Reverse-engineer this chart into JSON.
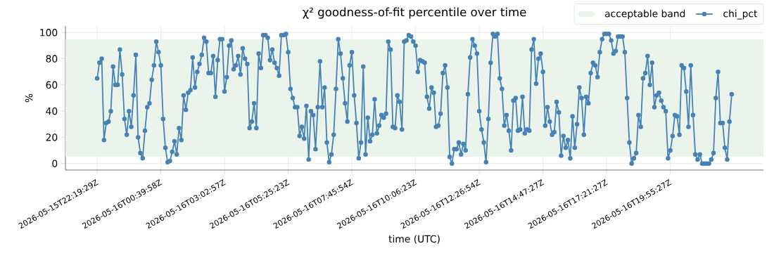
{
  "chart_data": {
    "type": "line",
    "title": "χ² goodness-of-fit percentile over time",
    "xlabel": "time (UTC)",
    "ylabel": "%",
    "categories": [
      "2026-05-15T22:19:29Z",
      null,
      null,
      null,
      null,
      null,
      null,
      null,
      null,
      null,
      null,
      null,
      null,
      null,
      null,
      null,
      null,
      null,
      null,
      null,
      null,
      null,
      null,
      null,
      null,
      null,
      null,
      null,
      "2026-05-16T00:39:58Z",
      null,
      null,
      null,
      null,
      null,
      null,
      null,
      null,
      null,
      null,
      null,
      null,
      null,
      null,
      null,
      null,
      null,
      null,
      null,
      null,
      null,
      null,
      null,
      null,
      null,
      null,
      null,
      "2026-05-16T03:02:57Z",
      null,
      null,
      null,
      null,
      null,
      null,
      null,
      null,
      null,
      null,
      null,
      null,
      null,
      null,
      null,
      null,
      null,
      null,
      null,
      null,
      null,
      null,
      null,
      null,
      null,
      null,
      null,
      "2026-05-16T05:25:23Z",
      null,
      null,
      null,
      null,
      null,
      null,
      null,
      null,
      null,
      null,
      null,
      null,
      null,
      null,
      null,
      null,
      null,
      null,
      null,
      null,
      null,
      null,
      null,
      null,
      null,
      null,
      null,
      "2026-05-16T07:45:54Z",
      null,
      null,
      null,
      null,
      null,
      null,
      null,
      null,
      null,
      null,
      null,
      null,
      null,
      null,
      null,
      null,
      null,
      null,
      null,
      null,
      null,
      null,
      null,
      null,
      null,
      null,
      null,
      "2026-05-16T10:06:23Z",
      null,
      null,
      null,
      null,
      null,
      null,
      null,
      null,
      null,
      null,
      null,
      null,
      null,
      null,
      null,
      null,
      null,
      null,
      null,
      null,
      null,
      null,
      null,
      null,
      null,
      null,
      null,
      "2026-05-16T12:26:54Z",
      null,
      null,
      null,
      null,
      null,
      null,
      null,
      null,
      null,
      null,
      null,
      null,
      null,
      null,
      null,
      null,
      null,
      null,
      null,
      null,
      null,
      null,
      null,
      null,
      null,
      null,
      null,
      "2026-05-16T14:47:27Z",
      null,
      null,
      null,
      null,
      null,
      null,
      null,
      null,
      null,
      null,
      null,
      null,
      null,
      null,
      null,
      null,
      null,
      null,
      null,
      null,
      null,
      null,
      null,
      null,
      null,
      null,
      null,
      "2026-05-16T17:21:27Z",
      null,
      null,
      null,
      null,
      null,
      null,
      null,
      null,
      null,
      null,
      null,
      null,
      null,
      null,
      null,
      null,
      null,
      null,
      null,
      null,
      null,
      null,
      null,
      null,
      null,
      null,
      null,
      "2026-05-16T19:55:27Z",
      null,
      null,
      null,
      null,
      null,
      null,
      null,
      null,
      null,
      null,
      null,
      null,
      null,
      null,
      null,
      null,
      null,
      null,
      null,
      null,
      null,
      null,
      null,
      null,
      null,
      null,
      null
    ],
    "series": [
      {
        "name": "chi_pct",
        "color": "#4682b4",
        "values": [
          65,
          77,
          80,
          18,
          31,
          32,
          40,
          74,
          60,
          60,
          87,
          68,
          34,
          22,
          40,
          28,
          52,
          83,
          20,
          8,
          4,
          25,
          43,
          46,
          64,
          75,
          93,
          85,
          75,
          34,
          12,
          1,
          2,
          9,
          17,
          7,
          27,
          18,
          52,
          41,
          54,
          56,
          81,
          58,
          70,
          76,
          83,
          96,
          93,
          69,
          69,
          82,
          51,
          79,
          95,
          95,
          55,
          66,
          90,
          94,
          72,
          75,
          82,
          68,
          88,
          80,
          76,
          27,
          32,
          46,
          27,
          84,
          73,
          98,
          98,
          96,
          79,
          87,
          77,
          73,
          67,
          98,
          98,
          99,
          85,
          57,
          50,
          43,
          43,
          21,
          28,
          19,
          44,
          3,
          40,
          37,
          11,
          43,
          78,
          43,
          58,
          16,
          1,
          7,
          22,
          57,
          95,
          84,
          65,
          46,
          32,
          75,
          85,
          52,
          31,
          4,
          16,
          74,
          7,
          35,
          17,
          22,
          49,
          23,
          29,
          37,
          35,
          38,
          93,
          87,
          28,
          27,
          52,
          47,
          26,
          93,
          94,
          98,
          97,
          93,
          90,
          70,
          79,
          78,
          77,
          51,
          42,
          58,
          54,
          28,
          29,
          38,
          69,
          75,
          58,
          5,
          0,
          11,
          11,
          16,
          7,
          15,
          10,
          53,
          81,
          95,
          90,
          84,
          40,
          26,
          16,
          1,
          34,
          77,
          99,
          97,
          99,
          65,
          57,
          29,
          37,
          25,
          10,
          48,
          50,
          25,
          26,
          51,
          23,
          26,
          25,
          87,
          95,
          61,
          80,
          84,
          70,
          29,
          43,
          32,
          22,
          24,
          47,
          39,
          6,
          21,
          12,
          18,
          4,
          36,
          12,
          30,
          58,
          50,
          22,
          51,
          46,
          69,
          77,
          75,
          66,
          85,
          95,
          99,
          99,
          99,
          94,
          84,
          86,
          97,
          97,
          97,
          85,
          50,
          16,
          0,
          4,
          8,
          37,
          28,
          65,
          69,
          82,
          60,
          77,
          43,
          52,
          54,
          48,
          43,
          40,
          4,
          10,
          21,
          37,
          36,
          22,
          75,
          73,
          55,
          28,
          75,
          37,
          7,
          3,
          7,
          0,
          0,
          0,
          0,
          3,
          8,
          50,
          70,
          31,
          31,
          12,
          3,
          32,
          53
        ]
      }
    ],
    "bands": [
      {
        "axis": "y",
        "from": 5,
        "to": 95,
        "label": "acceptable band",
        "color": "#ebf4eb"
      }
    ],
    "ylim": [
      -5,
      105
    ],
    "yticks": [
      0,
      20,
      40,
      60,
      80,
      100
    ],
    "grid": true,
    "legend": "top right",
    "marker": "circle",
    "line_style": "solid"
  }
}
